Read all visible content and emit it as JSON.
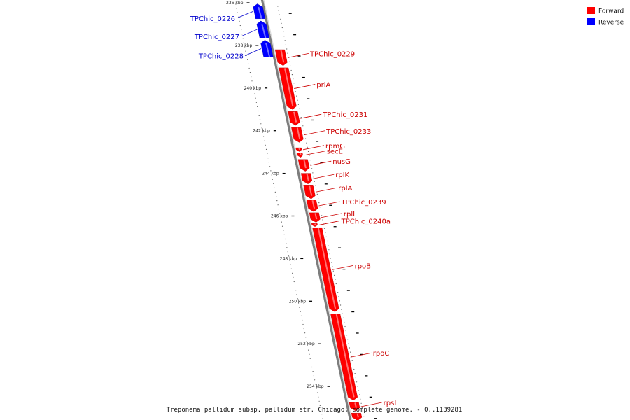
{
  "caption": "Treponema pallidum subsp. pallidum str. Chicago, complete genome. - 0..1139281",
  "legend": [
    {
      "label": "Forward",
      "color": "#ff0000"
    },
    {
      "label": "Reverse",
      "color": "#0000ff"
    }
  ],
  "ticks": [
    {
      "kbp": 236,
      "label": "236 kbp"
    },
    {
      "kbp": 238,
      "label": "238 kbp"
    },
    {
      "kbp": 240,
      "label": "240 kbp"
    },
    {
      "kbp": 242,
      "label": "242 kbp"
    },
    {
      "kbp": 244,
      "label": "244 kbp"
    },
    {
      "kbp": 246,
      "label": "246 kbp"
    },
    {
      "kbp": 248,
      "label": "248 kbp"
    },
    {
      "kbp": 250,
      "label": "250 kbp"
    },
    {
      "kbp": 252,
      "label": "252 kbp"
    },
    {
      "kbp": 254,
      "label": "254 kbp"
    }
  ],
  "genes": [
    {
      "name": "TPChic_0226",
      "strand": "reverse",
      "start_kbp": 236.05,
      "end_kbp": 236.75
    },
    {
      "name": "TPChic_0227",
      "strand": "reverse",
      "start_kbp": 236.85,
      "end_kbp": 237.65
    },
    {
      "name": "TPChic_0228",
      "strand": "reverse",
      "start_kbp": 237.75,
      "end_kbp": 238.55
    },
    {
      "name": "TPChic_0229",
      "strand": "forward",
      "start_kbp": 238.2,
      "end_kbp": 238.95
    },
    {
      "name": "priA",
      "strand": "forward",
      "start_kbp": 239.05,
      "end_kbp": 241.0
    },
    {
      "name": "TPChic_0231",
      "strand": "forward",
      "start_kbp": 241.1,
      "end_kbp": 241.75
    },
    {
      "name": "TPChic_0233",
      "strand": "forward",
      "start_kbp": 241.85,
      "end_kbp": 242.55
    },
    {
      "name": "rpmG",
      "strand": "forward",
      "start_kbp": 242.8,
      "end_kbp": 242.98
    },
    {
      "name": "secE",
      "strand": "forward",
      "start_kbp": 243.05,
      "end_kbp": 243.25
    },
    {
      "name": "nusG",
      "strand": "forward",
      "start_kbp": 243.35,
      "end_kbp": 243.9
    },
    {
      "name": "rplK",
      "strand": "forward",
      "start_kbp": 244.0,
      "end_kbp": 244.5
    },
    {
      "name": "rplA",
      "strand": "forward",
      "start_kbp": 244.55,
      "end_kbp": 245.2
    },
    {
      "name": "TPChic_0239",
      "strand": "forward",
      "start_kbp": 245.25,
      "end_kbp": 245.8
    },
    {
      "name": "rplL",
      "strand": "forward",
      "start_kbp": 245.85,
      "end_kbp": 246.3
    },
    {
      "name": "TPChic_0240a",
      "strand": "forward",
      "start_kbp": 246.35,
      "end_kbp": 246.5
    },
    {
      "name": "rpoB",
      "strand": "forward",
      "start_kbp": 246.55,
      "end_kbp": 250.5
    },
    {
      "name": "rpoC",
      "strand": "forward",
      "start_kbp": 250.6,
      "end_kbp": 254.65
    },
    {
      "name": "rpsL",
      "strand": "forward",
      "start_kbp": 254.75,
      "end_kbp": 255.15
    },
    {
      "name": "",
      "strand": "forward",
      "start_kbp": 255.25,
      "end_kbp": 255.6
    }
  ]
}
